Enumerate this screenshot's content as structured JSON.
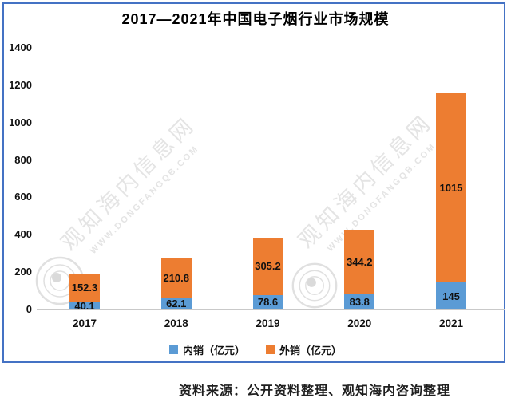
{
  "page": {
    "title": "2017—2021年中国电子烟行业市场规模",
    "source_note": "资料来源：公开资料整理、观知海内咨询整理",
    "watermark": {
      "site_name": "观知海内信息网",
      "site_url": "WWW.DONGFANGQB.COM"
    }
  },
  "chart_data": {
    "type": "bar",
    "stacked": true,
    "title": "2017—2021年中国电子烟行业市场规模",
    "categories": [
      "2017",
      "2018",
      "2019",
      "2020",
      "2021"
    ],
    "series": [
      {
        "name": "内销（亿元）",
        "color": "#5B9BD5",
        "values": [
          40.1,
          62.1,
          78.6,
          83.8,
          145
        ]
      },
      {
        "name": "外销（亿元）",
        "color": "#ED7D31",
        "values": [
          152.3,
          210.8,
          305.2,
          344.2,
          1015
        ]
      }
    ],
    "xlabel": "",
    "ylabel": "",
    "ylim": [
      0,
      1400
    ],
    "yticks": [
      0,
      200,
      400,
      600,
      800,
      1000,
      1200,
      1400
    ],
    "legend_position": "bottom",
    "grid": false,
    "data_labels": true,
    "frame_border_color": "#4472C4",
    "axis_line_color": "#C9C9C9",
    "label_color": "#111111",
    "watermark_color": "#E4E4E4"
  }
}
